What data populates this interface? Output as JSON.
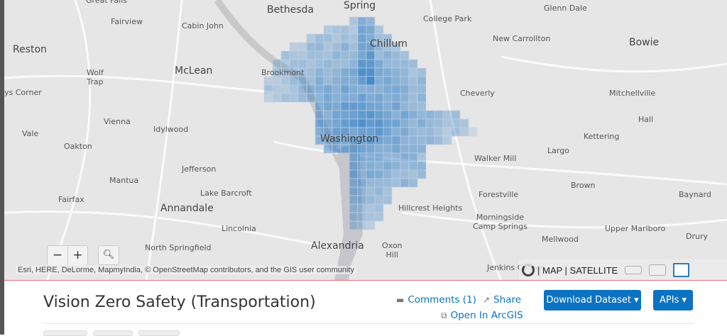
{
  "map": {
    "places": [
      {
        "name": "Great Falls",
        "big": false
      },
      {
        "name": "Bethesda",
        "big": true
      },
      {
        "name": "Spring",
        "big": true
      },
      {
        "name": "Glenn Dale",
        "big": false
      },
      {
        "name": "Fairview",
        "big": false
      },
      {
        "name": "Cabin John",
        "big": false
      },
      {
        "name": "College Park",
        "big": false
      },
      {
        "name": "Reston",
        "big": true
      },
      {
        "name": "Chillum",
        "big": true
      },
      {
        "name": "New Carrollton",
        "big": false
      },
      {
        "name": "Bowie",
        "big": true
      },
      {
        "name": "Wolf\nTrap",
        "big": false
      },
      {
        "name": "McLean",
        "big": true
      },
      {
        "name": "Brookmont",
        "big": false
      },
      {
        "name": "ys Corner",
        "big": false
      },
      {
        "name": "Cheverly",
        "big": false
      },
      {
        "name": "Mitchellville",
        "big": false
      },
      {
        "name": "Vienna",
        "big": false
      },
      {
        "name": "Hall",
        "big": false
      },
      {
        "name": "Vale",
        "big": false
      },
      {
        "name": "Idylwood",
        "big": false
      },
      {
        "name": "Kettering",
        "big": false
      },
      {
        "name": "Washington",
        "big": true
      },
      {
        "name": "Oakton",
        "big": false
      },
      {
        "name": "Largo",
        "big": false
      },
      {
        "name": "Walker Mill",
        "big": false
      },
      {
        "name": "Jefferson",
        "big": false
      },
      {
        "name": "Mantua",
        "big": false
      },
      {
        "name": "Brown",
        "big": false
      },
      {
        "name": "Lake Barcroft",
        "big": false
      },
      {
        "name": "Baynard",
        "big": false
      },
      {
        "name": "Fairfax",
        "big": false
      },
      {
        "name": "Forestville",
        "big": false
      },
      {
        "name": "Annandale",
        "big": true
      },
      {
        "name": "Hillcrest Heights",
        "big": false
      },
      {
        "name": "Morningside\nCamp Springs",
        "big": false
      },
      {
        "name": "Lincolnia",
        "big": false
      },
      {
        "name": "Upper Marlboro",
        "big": false
      },
      {
        "name": "Drury",
        "big": false
      },
      {
        "name": "Mellwood",
        "big": false
      },
      {
        "name": "North Springfield",
        "big": false
      },
      {
        "name": "Alexandria",
        "big": true
      },
      {
        "name": "Oxon\nHill",
        "big": false
      },
      {
        "name": "Jenkins Corner",
        "big": false
      }
    ],
    "zoom_out_label": "−",
    "zoom_in_label": "+",
    "search_icon": "magnifier-icon",
    "attribution": "Esri, HERE, DeLorme, MapmyIndia, © OpenStreetMap contributors, and the GIS user community",
    "basemap_toggle": "| MAP | SATELLITE",
    "heat_color": "#2a7bc4"
  },
  "header": {
    "title": "Vision Zero Safety (Transportation)",
    "comments": "Comments (1)",
    "share": "Share",
    "open_arcgis": "Open In ArcGIS",
    "download": "Download Dataset ▾",
    "apis": "APIs ▾"
  }
}
